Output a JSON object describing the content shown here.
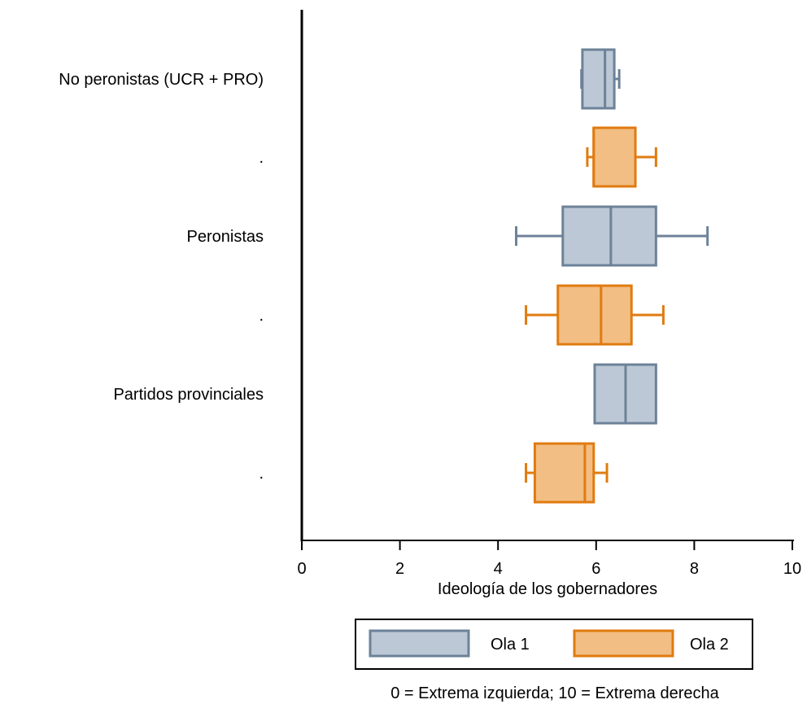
{
  "chart_data": {
    "type": "boxplot",
    "orientation": "horizontal",
    "xlabel": "Ideología de los gobernadores",
    "xlim": [
      0,
      10
    ],
    "xticks": [
      0,
      2,
      4,
      6,
      8,
      10
    ],
    "note": "0 = Extrema izquierda; 10 = Extrema derecha",
    "legend": {
      "position": "bottom",
      "entries": [
        "Ola 1",
        "Ola 2"
      ]
    },
    "colors": {
      "Ola 1": {
        "fill": "#bcc8d5",
        "stroke": "#6d8299"
      },
      "Ola 2": {
        "fill": "#f2be84",
        "stroke": "#e07b10"
      }
    },
    "rows": [
      {
        "label": "No peronistas (UCR + PRO)",
        "series": "Ola 1",
        "whisker_low": 5.7,
        "q1": 5.72,
        "median": 6.18,
        "q3": 6.37,
        "whisker_high": 6.47
      },
      {
        "label": ".",
        "series": "Ola 2",
        "whisker_low": 5.82,
        "q1": 5.95,
        "median": 5.95,
        "q3": 6.8,
        "whisker_high": 7.22
      },
      {
        "label": "Peronistas",
        "series": "Ola 1",
        "whisker_low": 4.37,
        "q1": 5.32,
        "median": 6.3,
        "q3": 7.22,
        "whisker_high": 8.27
      },
      {
        "label": ".",
        "series": "Ola 2",
        "whisker_low": 4.57,
        "q1": 5.22,
        "median": 6.1,
        "q3": 6.72,
        "whisker_high": 7.37
      },
      {
        "label": "Partidos provinciales",
        "series": "Ola 1",
        "whisker_low": 5.97,
        "q1": 5.97,
        "median": 6.6,
        "q3": 7.22,
        "whisker_high": 7.22
      },
      {
        "label": ".",
        "series": "Ola 2",
        "whisker_low": 4.57,
        "q1": 4.75,
        "median": 5.77,
        "q3": 5.95,
        "whisker_high": 6.22
      }
    ]
  }
}
